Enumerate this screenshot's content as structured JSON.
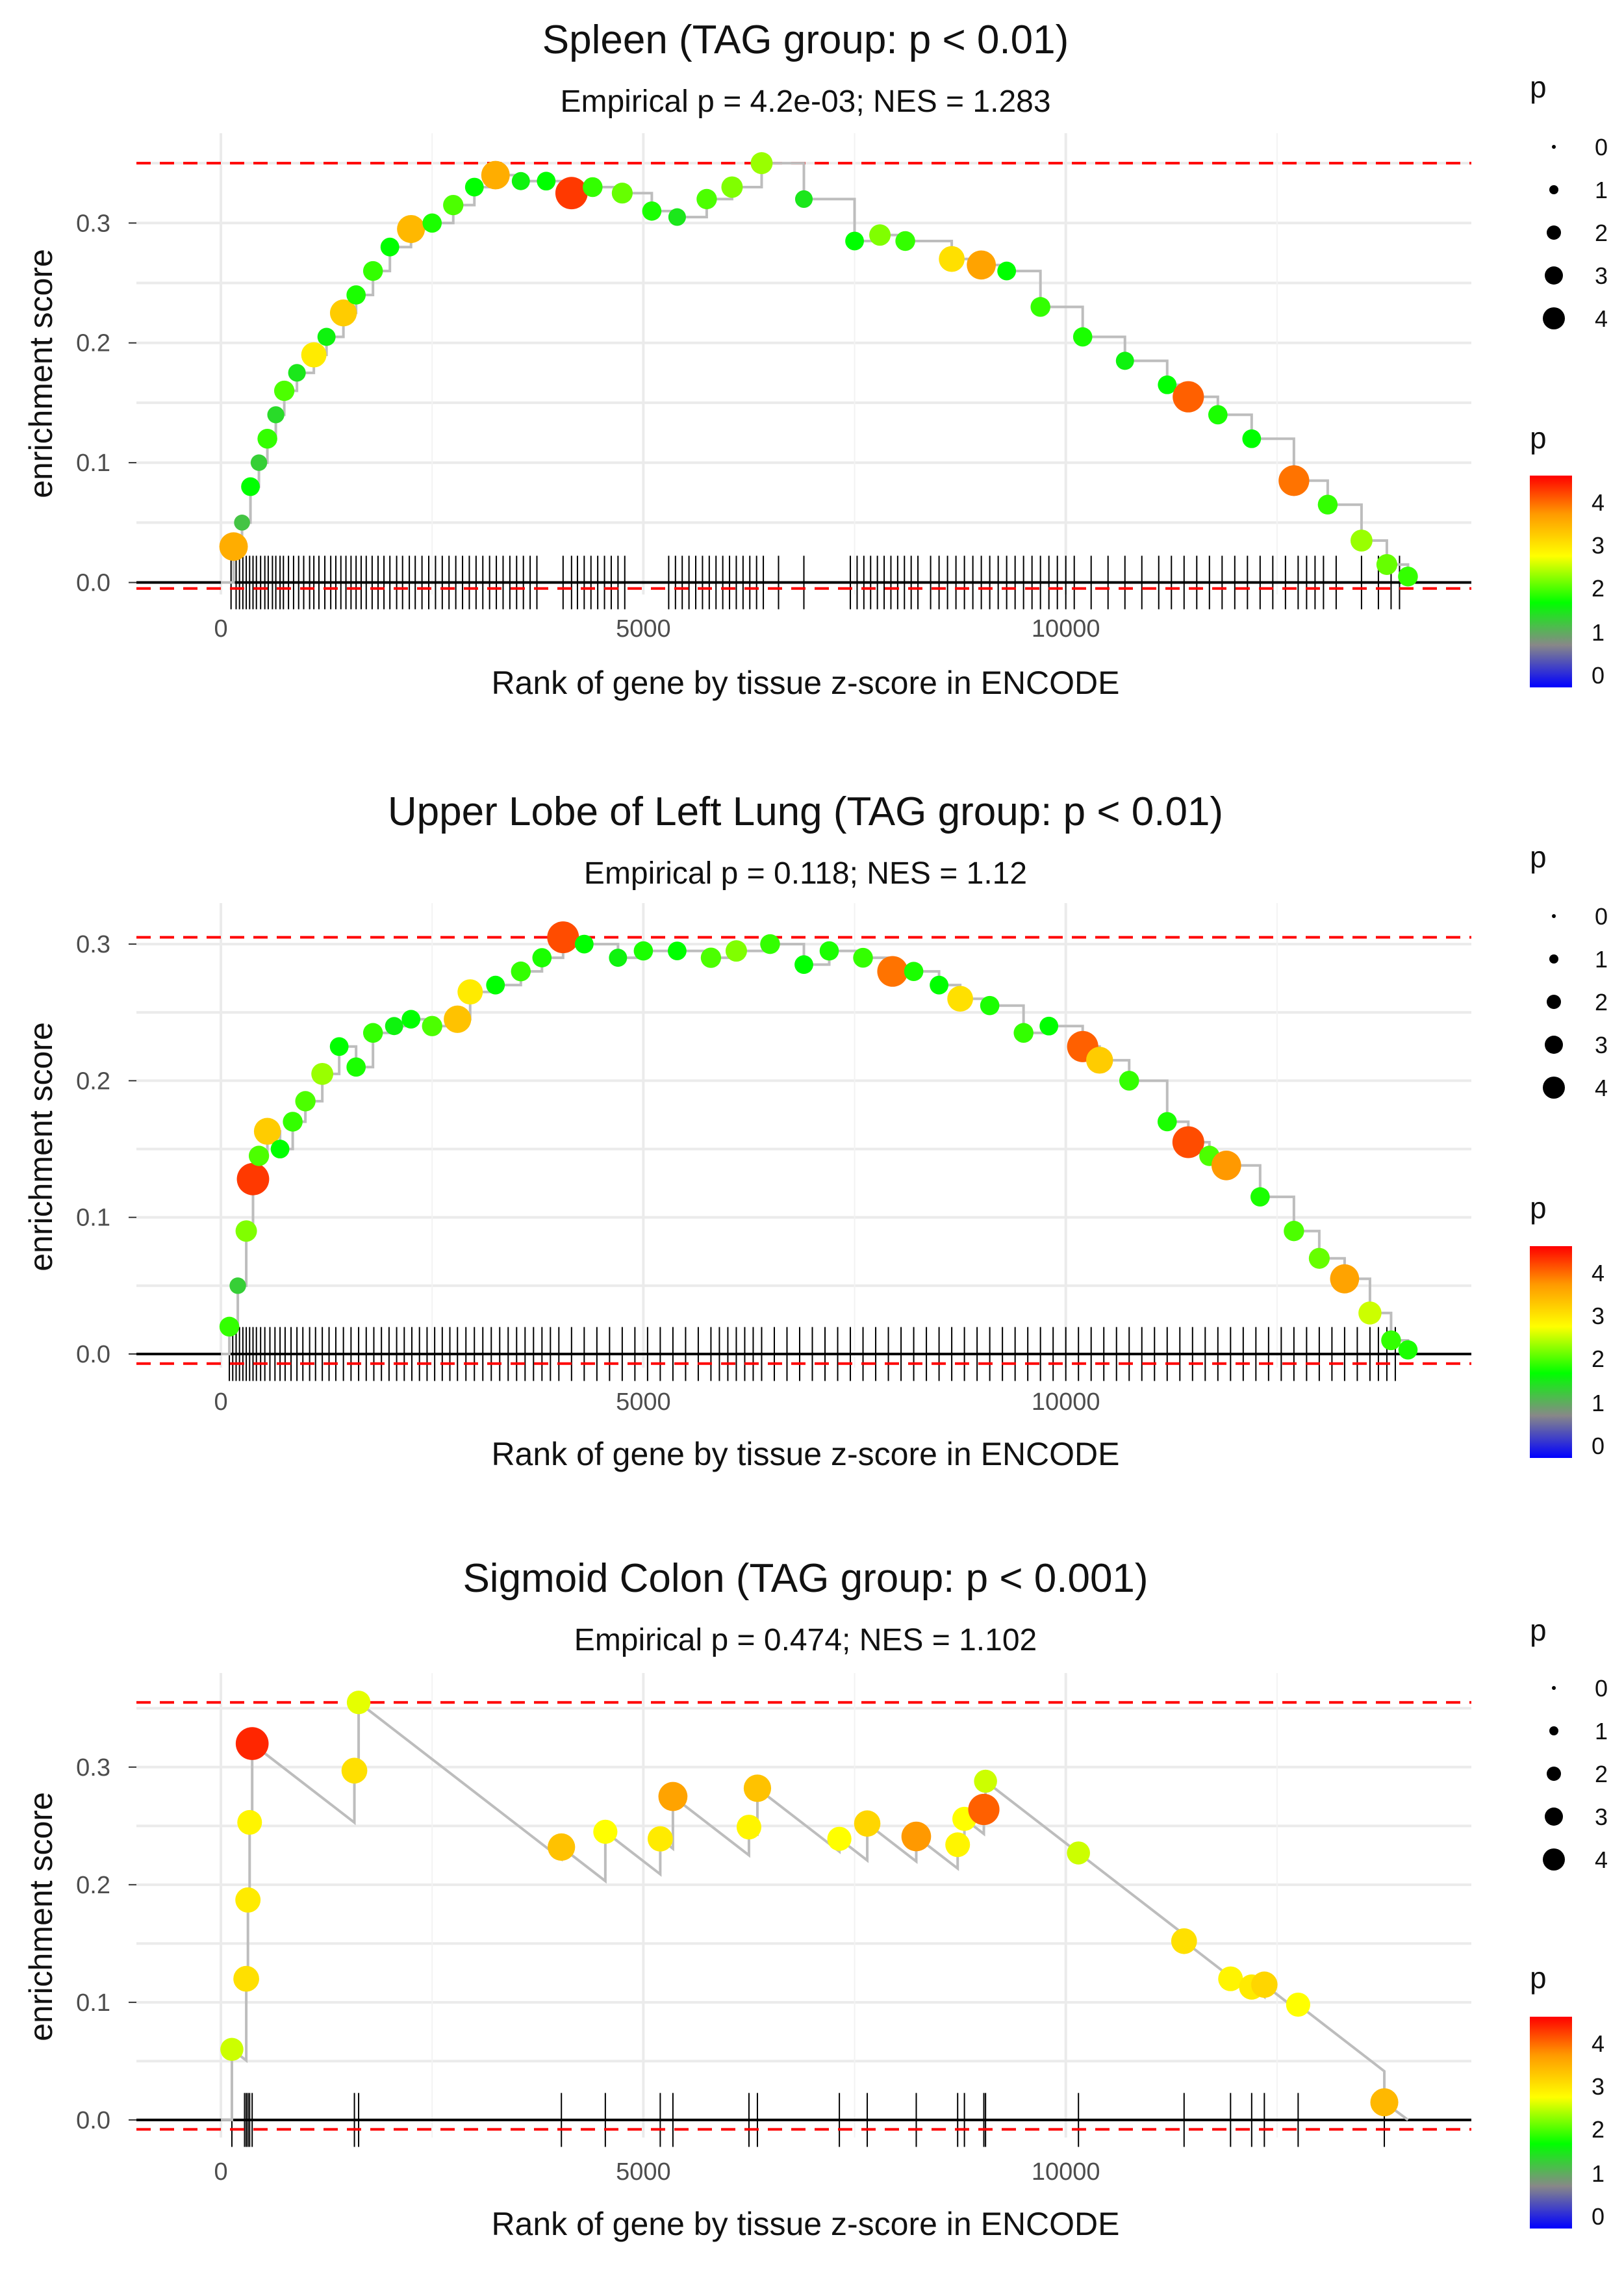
{
  "chart_data": [
    {
      "type": "scatter",
      "title": "Spleen (TAG group: p < 0.01)",
      "subtitle": "Empirical p = 4.2e-03; NES = 1.283",
      "xlabel": "Rank of gene by tissue z-score in ENCODE",
      "ylabel": "enrichment score",
      "xlim": [
        -1000,
        14800
      ],
      "ylim": [
        -0.01,
        0.375
      ],
      "xticks": [
        0,
        5000,
        10000
      ],
      "yticks": [
        0.0,
        0.1,
        0.2,
        0.3
      ],
      "xtick_labels": [
        "0",
        "5000",
        "10000"
      ],
      "ytick_labels": [
        "0.0",
        "0.1",
        "0.2",
        "0.3"
      ],
      "max_es": 0.35,
      "min_es": -0.005,
      "points": [
        [
          150,
          0.03,
          3.8
        ],
        [
          250,
          0.05,
          1.5
        ],
        [
          350,
          0.08,
          2.0
        ],
        [
          450,
          0.1,
          1.6
        ],
        [
          550,
          0.12,
          2.2
        ],
        [
          650,
          0.14,
          1.7
        ],
        [
          750,
          0.16,
          2.3
        ],
        [
          900,
          0.175,
          1.8
        ],
        [
          1100,
          0.19,
          3.2
        ],
        [
          1250,
          0.205,
          1.9
        ],
        [
          1450,
          0.225,
          3.5
        ],
        [
          1600,
          0.24,
          2.1
        ],
        [
          1800,
          0.26,
          2.2
        ],
        [
          2000,
          0.28,
          2.0
        ],
        [
          2250,
          0.295,
          3.7
        ],
        [
          2500,
          0.3,
          2.1
        ],
        [
          2750,
          0.315,
          2.3
        ],
        [
          3000,
          0.33,
          2.0
        ],
        [
          3250,
          0.34,
          3.8
        ],
        [
          3550,
          0.335,
          1.9
        ],
        [
          3850,
          0.335,
          2.0
        ],
        [
          4150,
          0.325,
          4.5
        ],
        [
          4400,
          0.33,
          2.2
        ],
        [
          4750,
          0.325,
          2.4
        ],
        [
          5100,
          0.31,
          2.1
        ],
        [
          5400,
          0.305,
          1.8
        ],
        [
          5750,
          0.32,
          2.3
        ],
        [
          6050,
          0.33,
          2.5
        ],
        [
          6400,
          0.35,
          2.6
        ],
        [
          6900,
          0.32,
          1.8
        ],
        [
          7500,
          0.285,
          2.0
        ],
        [
          7800,
          0.29,
          2.5
        ],
        [
          8100,
          0.285,
          2.2
        ],
        [
          8650,
          0.27,
          3.3
        ],
        [
          9000,
          0.265,
          3.9
        ],
        [
          9300,
          0.26,
          2.0
        ],
        [
          9700,
          0.23,
          2.2
        ],
        [
          10200,
          0.205,
          2.1
        ],
        [
          10700,
          0.185,
          1.9
        ],
        [
          11200,
          0.165,
          2.0
        ],
        [
          11450,
          0.155,
          4.3
        ],
        [
          11800,
          0.14,
          2.1
        ],
        [
          12200,
          0.12,
          2.0
        ],
        [
          12700,
          0.085,
          4.2
        ],
        [
          13100,
          0.065,
          2.2
        ],
        [
          13500,
          0.035,
          2.6
        ],
        [
          13800,
          0.015,
          2.4
        ],
        [
          14050,
          0.005,
          2.2
        ]
      ],
      "hits": [
        120,
        180,
        220,
        260,
        300,
        340,
        380,
        420,
        470,
        520,
        560,
        610,
        650,
        700,
        740,
        800,
        860,
        920,
        980,
        1050,
        1100,
        1160,
        1230,
        1300,
        1360,
        1420,
        1480,
        1540,
        1600,
        1660,
        1720,
        1790,
        1860,
        1930,
        2000,
        2080,
        2150,
        2230,
        2300,
        2380,
        2460,
        2540,
        2620,
        2700,
        2780,
        2860,
        2940,
        3020,
        3100,
        3180,
        3260,
        3340,
        3420,
        3500,
        3580,
        3660,
        3740,
        4050,
        4150,
        4220,
        4300,
        4380,
        4460,
        4540,
        4620,
        4700,
        4780,
        5300,
        5380,
        5460,
        5540,
        5620,
        5700,
        5780,
        5860,
        5940,
        6020,
        6100,
        6180,
        6260,
        6340,
        6420,
        6600,
        6900,
        7450,
        7530,
        7610,
        7690,
        7770,
        7850,
        7930,
        8010,
        8090,
        8170,
        8250,
        8400,
        8500,
        8600,
        8700,
        8800,
        8900,
        9000,
        9100,
        9200,
        9300,
        9400,
        9500,
        9600,
        9700,
        9800,
        9900,
        10000,
        10100,
        10300,
        10500,
        10700,
        10900,
        11100,
        11250,
        11400,
        11550,
        11700,
        11850,
        12000,
        12150,
        12300,
        12450,
        12600,
        12750,
        12850,
        12950,
        13050,
        13200,
        13500,
        13700,
        13850,
        13950
      ]
    },
    {
      "type": "scatter",
      "title": "Upper Lobe of Left Lung (TAG group: p < 0.01)",
      "subtitle": "Empirical p = 0.118; NES = 1.12",
      "xlabel": "Rank of gene by tissue z-score in ENCODE",
      "ylabel": "enrichment score",
      "xlim": [
        -1000,
        14800
      ],
      "ylim": [
        -0.01,
        0.33
      ],
      "xticks": [
        0,
        5000,
        10000
      ],
      "yticks": [
        0.0,
        0.1,
        0.2,
        0.3
      ],
      "xtick_labels": [
        "0",
        "5000",
        "10000"
      ],
      "ytick_labels": [
        "0.0",
        "0.1",
        "0.2",
        "0.3"
      ],
      "max_es": 0.305,
      "min_es": -0.007,
      "points": [
        [
          100,
          0.02,
          2.2
        ],
        [
          200,
          0.05,
          1.6
        ],
        [
          300,
          0.09,
          2.5
        ],
        [
          380,
          0.128,
          4.5
        ],
        [
          450,
          0.145,
          2.3
        ],
        [
          550,
          0.163,
          3.5
        ],
        [
          700,
          0.15,
          2.0
        ],
        [
          850,
          0.17,
          2.2
        ],
        [
          1000,
          0.185,
          2.3
        ],
        [
          1200,
          0.205,
          2.6
        ],
        [
          1400,
          0.225,
          2.0
        ],
        [
          1600,
          0.21,
          2.1
        ],
        [
          1800,
          0.235,
          2.2
        ],
        [
          2050,
          0.24,
          1.9
        ],
        [
          2250,
          0.245,
          2.0
        ],
        [
          2500,
          0.24,
          2.3
        ],
        [
          2800,
          0.245,
          3.6
        ],
        [
          2950,
          0.265,
          3.2
        ],
        [
          3250,
          0.27,
          2.0
        ],
        [
          3550,
          0.28,
          2.2
        ],
        [
          3800,
          0.29,
          2.1
        ],
        [
          4050,
          0.305,
          4.4
        ],
        [
          4300,
          0.3,
          2.0
        ],
        [
          4700,
          0.29,
          1.9
        ],
        [
          5000,
          0.295,
          2.1
        ],
        [
          5400,
          0.295,
          2.0
        ],
        [
          5800,
          0.29,
          2.3
        ],
        [
          6100,
          0.295,
          2.5
        ],
        [
          6500,
          0.3,
          2.2
        ],
        [
          6900,
          0.285,
          2.0
        ],
        [
          7200,
          0.295,
          2.1
        ],
        [
          7600,
          0.29,
          2.2
        ],
        [
          7950,
          0.28,
          4.2
        ],
        [
          8200,
          0.28,
          2.1
        ],
        [
          8500,
          0.27,
          2.0
        ],
        [
          8750,
          0.26,
          3.3
        ],
        [
          9100,
          0.255,
          2.1
        ],
        [
          9500,
          0.235,
          2.2
        ],
        [
          9800,
          0.24,
          2.0
        ],
        [
          10200,
          0.225,
          4.3
        ],
        [
          10400,
          0.215,
          3.5
        ],
        [
          10750,
          0.2,
          2.2
        ],
        [
          11200,
          0.17,
          2.1
        ],
        [
          11450,
          0.155,
          4.4
        ],
        [
          11700,
          0.145,
          2.3
        ],
        [
          11900,
          0.138,
          4.0
        ],
        [
          12300,
          0.115,
          2.1
        ],
        [
          12700,
          0.09,
          2.3
        ],
        [
          13000,
          0.07,
          2.4
        ],
        [
          13300,
          0.055,
          3.9
        ],
        [
          13600,
          0.03,
          2.8
        ],
        [
          13850,
          0.01,
          2.2
        ],
        [
          14050,
          0.003,
          2.1
        ]
      ],
      "hits": [
        100,
        140,
        180,
        220,
        260,
        300,
        340,
        380,
        420,
        470,
        520,
        580,
        640,
        700,
        760,
        830,
        900,
        970,
        1050,
        1120,
        1200,
        1280,
        1360,
        1450,
        1540,
        1630,
        1720,
        1810,
        1900,
        1990,
        2080,
        2170,
        2260,
        2350,
        2440,
        2530,
        2620,
        2710,
        2800,
        2900,
        3000,
        3100,
        3200,
        3300,
        3400,
        3500,
        3600,
        3700,
        3800,
        3900,
        4000,
        4150,
        4300,
        4450,
        4600,
        4750,
        4900,
        5050,
        5200,
        5350,
        5500,
        5650,
        5800,
        5900,
        6000,
        6100,
        6200,
        6300,
        6400,
        6550,
        6700,
        6850,
        7000,
        7150,
        7300,
        7450,
        7600,
        7750,
        7900,
        8050,
        8200,
        8350,
        8500,
        8650,
        8800,
        8950,
        9100,
        9250,
        9400,
        9550,
        9700,
        9850,
        10000,
        10150,
        10300,
        10450,
        10600,
        10750,
        10900,
        11050,
        11200,
        11350,
        11500,
        11650,
        11800,
        11950,
        12100,
        12250,
        12400,
        12550,
        12700,
        12850,
        13000,
        13150,
        13300,
        13450,
        13600,
        13700,
        13800,
        13900
      ]
    },
    {
      "type": "scatter",
      "title": "Sigmoid Colon (TAG group: p < 0.001)",
      "subtitle": "Empirical p = 0.474; NES = 1.102",
      "xlabel": "Rank of gene by tissue z-score in ENCODE",
      "ylabel": "enrichment score",
      "xlim": [
        -1000,
        14800
      ],
      "ylim": [
        -0.015,
        0.38
      ],
      "xticks": [
        0,
        5000,
        10000
      ],
      "yticks": [
        0.0,
        0.1,
        0.2,
        0.3
      ],
      "xtick_labels": [
        "0",
        "5000",
        "10000"
      ],
      "ytick_labels": [
        "0.0",
        "0.1",
        "0.2",
        "0.3"
      ],
      "max_es": 0.355,
      "min_es": -0.008,
      "points": [
        [
          130,
          0.06,
          2.8
        ],
        [
          300,
          0.12,
          3.3
        ],
        [
          320,
          0.187,
          3.2
        ],
        [
          340,
          0.253,
          3.1
        ],
        [
          370,
          0.32,
          4.6
        ],
        [
          1580,
          0.297,
          3.3
        ],
        [
          1630,
          0.355,
          2.9
        ],
        [
          4030,
          0.232,
          3.6
        ],
        [
          4550,
          0.245,
          3.0
        ],
        [
          5200,
          0.239,
          3.2
        ],
        [
          5350,
          0.275,
          3.9
        ],
        [
          6250,
          0.249,
          3.1
        ],
        [
          6350,
          0.282,
          3.6
        ],
        [
          7320,
          0.239,
          3.0
        ],
        [
          7650,
          0.252,
          3.4
        ],
        [
          8230,
          0.241,
          4.0
        ],
        [
          8720,
          0.234,
          3.1
        ],
        [
          8800,
          0.256,
          3.0
        ],
        [
          9030,
          0.264,
          4.3
        ],
        [
          9050,
          0.288,
          2.8
        ],
        [
          10150,
          0.227,
          2.8
        ],
        [
          11400,
          0.152,
          3.3
        ],
        [
          11950,
          0.12,
          3.1
        ],
        [
          12200,
          0.113,
          3.2
        ],
        [
          12350,
          0.115,
          3.4
        ],
        [
          12750,
          0.098,
          3.0
        ],
        [
          13770,
          0.015,
          3.7
        ]
      ],
      "hits": [
        130,
        280,
        300,
        320,
        340,
        370,
        1580,
        1630,
        4030,
        4550,
        5200,
        5350,
        6250,
        6350,
        7320,
        7650,
        8230,
        8720,
        8800,
        9030,
        9050,
        10150,
        11400,
        11950,
        12200,
        12350,
        12750,
        13770
      ]
    }
  ],
  "legend": {
    "size_title": "p",
    "size_entries": [
      "0",
      "1",
      "2",
      "3",
      "4"
    ],
    "color_title": "p",
    "color_entries": [
      "4",
      "3",
      "2",
      "1",
      "0"
    ],
    "color_stops": [
      "#0000ff",
      "#888888",
      "#00ff00",
      "#ffff00",
      "#ff9900",
      "#ff0000"
    ]
  }
}
